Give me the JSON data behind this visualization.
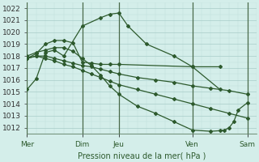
{
  "title": "Pression niveau de la mer( hPa )",
  "bg_color": "#d4eeea",
  "grid_major_color": "#a8ccc8",
  "grid_minor_color": "#c0deda",
  "line_color": "#2d5a2d",
  "vline_color": "#4a6a4a",
  "ylim": [
    1011.5,
    1022.5
  ],
  "yticks": [
    1012,
    1013,
    1014,
    1015,
    1016,
    1017,
    1018,
    1019,
    1020,
    1021,
    1022
  ],
  "xlim": [
    0,
    25
  ],
  "vlines_x": [
    0,
    6,
    10,
    18,
    24
  ],
  "xtick_positions": [
    0,
    6,
    10,
    18,
    24
  ],
  "xtick_labels": [
    "Mer",
    "Dim",
    "Jeu",
    "Ven",
    "Sam"
  ],
  "line1": {
    "x": [
      0,
      1,
      2,
      3,
      4,
      6,
      8,
      9,
      10,
      11,
      13,
      16,
      18,
      21
    ],
    "y": [
      1015.2,
      1016.1,
      1018.3,
      1018.5,
      1018.0,
      1020.5,
      1021.2,
      1021.5,
      1021.6,
      1020.5,
      1019.0,
      1018.0,
      1017.1,
      1017.1
    ]
  },
  "line2": {
    "x": [
      0,
      1,
      2,
      3,
      4,
      5,
      6,
      7,
      8,
      9,
      10,
      18,
      21
    ],
    "y": [
      1017.8,
      1018.2,
      1019.0,
      1019.3,
      1019.3,
      1019.1,
      1017.5,
      1017.4,
      1017.3,
      1017.3,
      1017.3,
      1017.1,
      1015.2
    ]
  },
  "line3": {
    "x": [
      0,
      1,
      2,
      3,
      4,
      5,
      6,
      7,
      8,
      9,
      10,
      12,
      14,
      16,
      18,
      20,
      22,
      24
    ],
    "y": [
      1017.8,
      1018.0,
      1018.0,
      1017.8,
      1017.6,
      1017.4,
      1017.2,
      1017.1,
      1016.9,
      1016.7,
      1016.5,
      1016.2,
      1016.0,
      1015.8,
      1015.5,
      1015.3,
      1015.1,
      1014.8
    ]
  },
  "line4": {
    "x": [
      0,
      1,
      2,
      3,
      4,
      5,
      6,
      7,
      8,
      9,
      10,
      12,
      14,
      16,
      18,
      20,
      22,
      24
    ],
    "y": [
      1017.8,
      1018.0,
      1017.8,
      1017.6,
      1017.3,
      1017.1,
      1016.8,
      1016.5,
      1016.2,
      1015.9,
      1015.6,
      1015.2,
      1014.8,
      1014.4,
      1014.0,
      1013.6,
      1013.2,
      1012.8
    ]
  },
  "line5": {
    "x": [
      0,
      1,
      2,
      3,
      4,
      5,
      6,
      7,
      8,
      9,
      10,
      12,
      14,
      16,
      18,
      20,
      21,
      21.5,
      22,
      22.5,
      23,
      24
    ],
    "y": [
      1018.0,
      1018.3,
      1018.5,
      1018.7,
      1018.7,
      1018.4,
      1017.8,
      1017.2,
      1016.4,
      1015.5,
      1014.8,
      1013.8,
      1013.2,
      1012.5,
      1011.8,
      1011.7,
      1011.75,
      1011.8,
      1012.0,
      1012.5,
      1013.5,
      1014.1
    ]
  }
}
